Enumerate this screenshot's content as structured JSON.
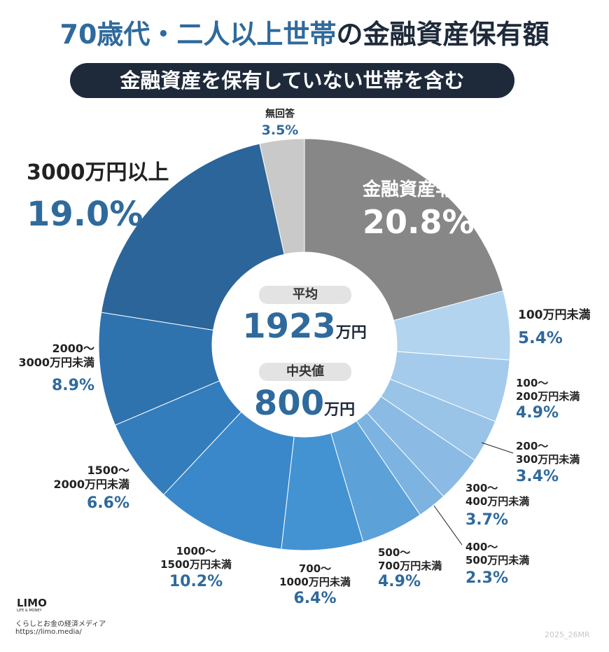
{
  "chart_data": {
    "type": "donut",
    "title": [
      "70歳代・二人以上世帯",
      "の金融資産保有額"
    ],
    "subtitle": "金融資産を保有していない世帯を含む",
    "categories": [
      "金融資産非保有",
      "100万円未満",
      "100〜\n200万円未満",
      "200〜\n300万円未満",
      "300〜\n400万円未満",
      "400〜\n500万円未満",
      "500〜\n700万円未満",
      "700〜\n1000万円未満",
      "1000〜\n1500万円未満",
      "1500〜\n2000万円未満",
      "2000〜\n3000万円未満",
      "3000万円以上",
      "無回答"
    ],
    "values": [
      20.8,
      5.4,
      4.9,
      3.4,
      3.7,
      2.3,
      4.9,
      6.4,
      10.2,
      6.6,
      8.9,
      19.0,
      3.5
    ],
    "value_labels": [
      "20.8%",
      "5.4%",
      "4.9%",
      "3.4%",
      "3.7%",
      "2.3%",
      "4.9%",
      "6.4%",
      "10.2%",
      "6.6%",
      "8.9%",
      "19.0%",
      "3.5%"
    ],
    "colors": [
      "#878787",
      "#b3d4ef",
      "#a4cbeb",
      "#99c4e8",
      "#8bbbe4",
      "#7db3e0",
      "#5da1d9",
      "#4393d3",
      "#3a88c9",
      "#337dbd",
      "#2e73ae",
      "#2b6599",
      "#c9c9c9"
    ],
    "center": {
      "mean_label": "平均",
      "mean_value": "1923",
      "mean_unit": "万円",
      "median_label": "中央値",
      "median_value": "800",
      "median_unit": "万円"
    },
    "footer": {
      "logo": "LIMO",
      "logo_sub": "LIFE & MONEY",
      "tagline": "くらしとお金の経済メディア",
      "url": "https://limo.media/",
      "code": "2025_26MR"
    }
  }
}
